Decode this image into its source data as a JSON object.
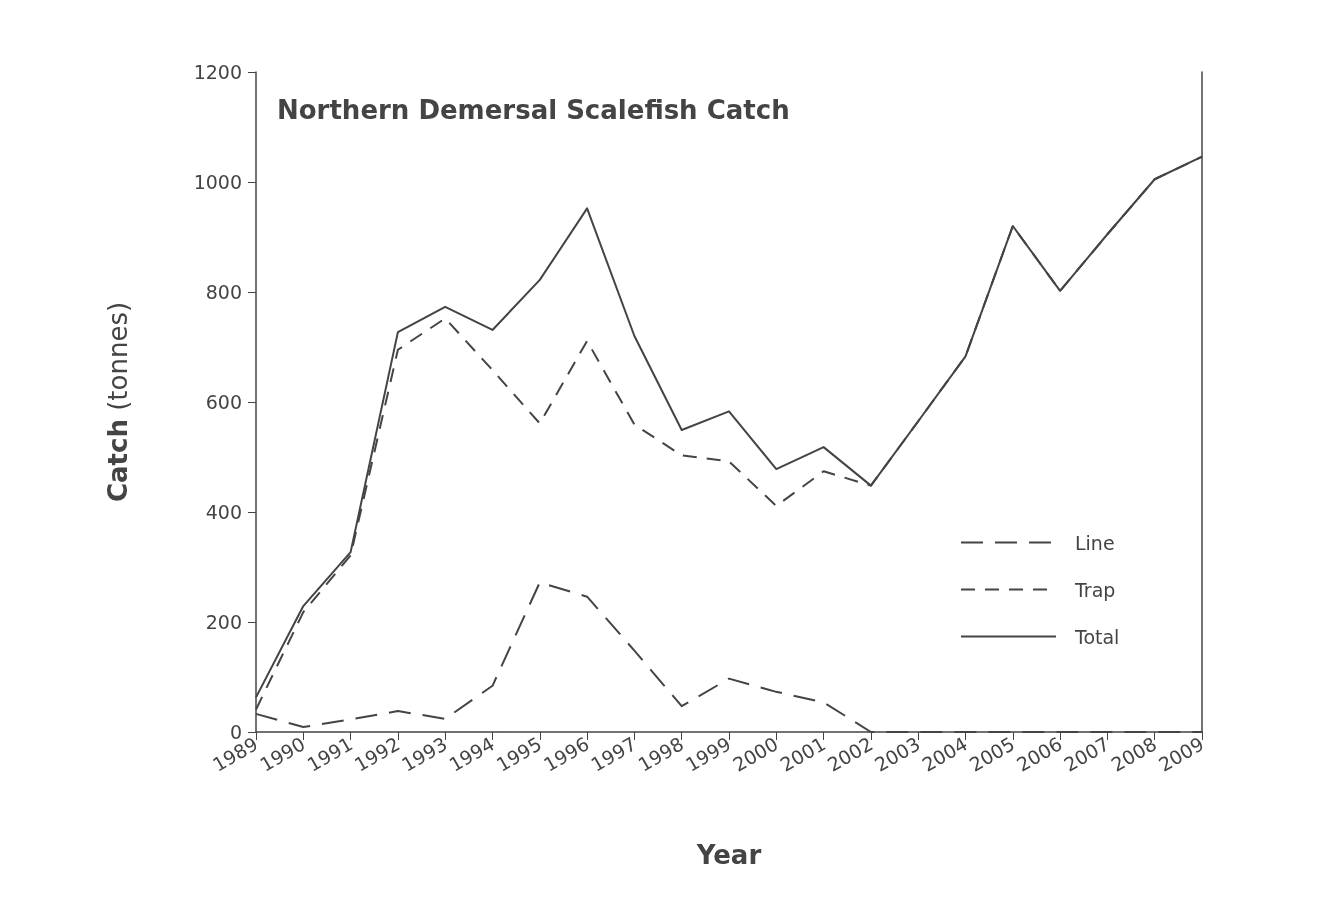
{
  "chart_data": {
    "type": "line",
    "title": "Northern Demersal Scalefish Catch",
    "xlabel": "Year",
    "ylabel": "Catch (tonnes)",
    "categories": [
      "1989",
      "1990",
      "1991",
      "1992",
      "1993",
      "1994",
      "1995",
      "1996",
      "1997",
      "1998",
      "1999",
      "2000",
      "2001",
      "2002",
      "2003",
      "2004",
      "2005",
      "2006",
      "2007",
      "2008",
      "2009"
    ],
    "series": [
      {
        "name": "Line",
        "color": "#444444",
        "line_style": "dashed",
        "values": [
          33,
          9,
          23,
          38,
          24,
          84,
          272,
          246,
          148,
          47,
          97,
          73,
          54,
          0,
          0,
          0,
          0,
          0,
          0,
          0,
          0
        ]
      },
      {
        "name": "Trap",
        "color": "#444444",
        "line_style": "dashed",
        "values": [
          41,
          218,
          321,
          695,
          752,
          658,
          561,
          711,
          559,
          503,
          492,
          411,
          474,
          448,
          565,
          683,
          920,
          802,
          905,
          1005,
          1046
        ]
      },
      {
        "name": "Total",
        "color": "#444444",
        "line_style": "solid",
        "values": [
          63,
          229,
          327,
          727,
          773,
          731,
          822,
          952,
          720,
          549,
          583,
          478,
          518,
          448,
          565,
          683,
          920,
          802,
          905,
          1005,
          1046
        ]
      }
    ],
    "ylim": [
      0,
      1200
    ],
    "yticks": [
      0,
      200,
      400,
      600,
      800,
      1000,
      1200
    ],
    "grid": false,
    "legend": "bottom right",
    "marker": "none"
  }
}
